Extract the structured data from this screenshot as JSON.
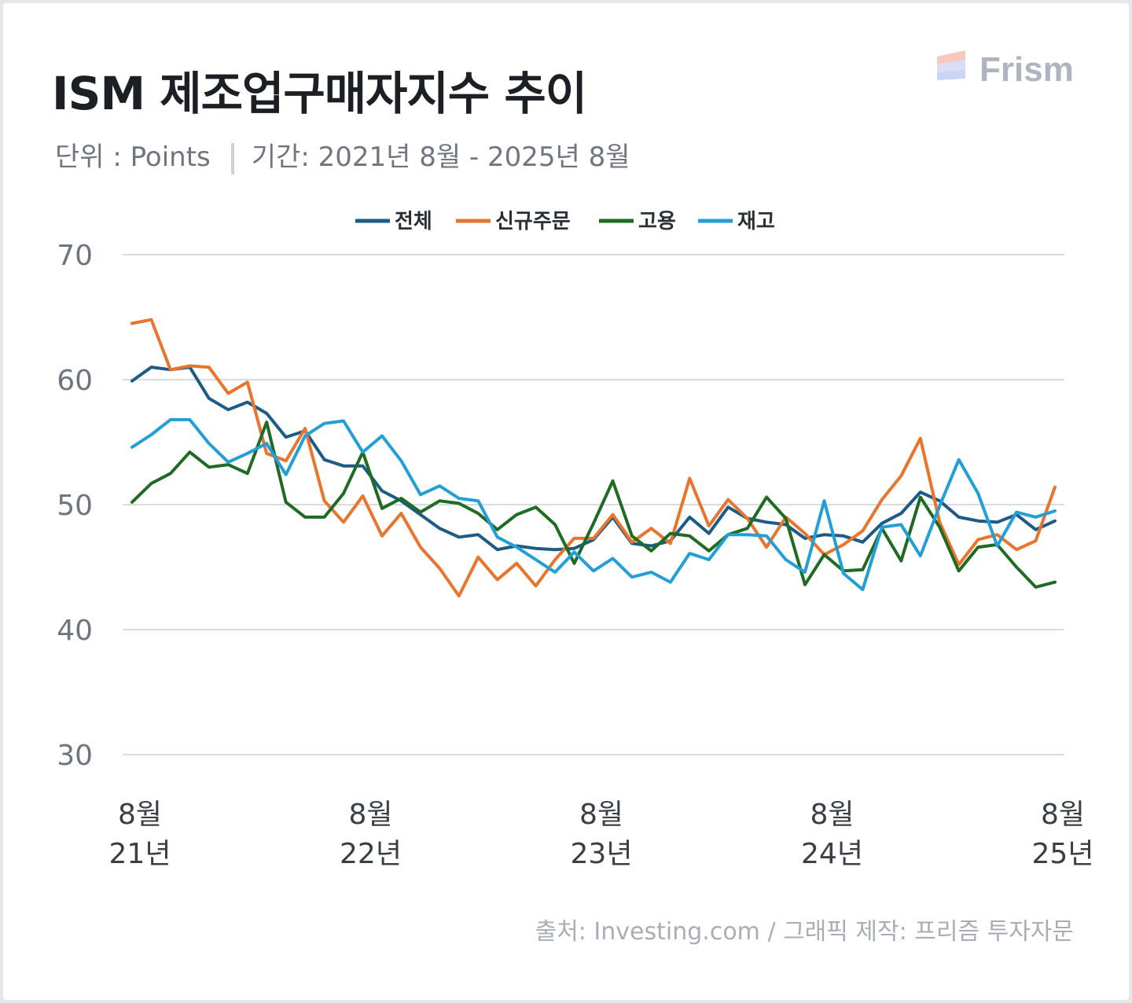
{
  "header": {
    "title": "ISM 제조업구매자지수 추이",
    "unit": "단위 : Points",
    "period": "기간: 2021년 8월 - 2025년 8월",
    "brand": "Frism"
  },
  "footer": {
    "source": "출처: Investing.com / 그래픽 제작: 프리즘 투자자문"
  },
  "colors": {
    "전체": "#1c5b87",
    "신규주문": "#e9742c",
    "고용": "#1f6b23",
    "재고": "#239fd8",
    "grid": "#d9dce1"
  },
  "chart_data": {
    "type": "line",
    "ylim": [
      30,
      70
    ],
    "yticks": [
      70,
      60,
      50,
      40,
      30
    ],
    "xlabel": "",
    "ylabel": "",
    "grid": true,
    "legend_position": "top-center",
    "xtick_labels": [
      {
        "index": 0,
        "month": "8월",
        "year": "21년"
      },
      {
        "index": 12,
        "month": "8월",
        "year": "22년"
      },
      {
        "index": 24,
        "month": "8월",
        "year": "23년"
      },
      {
        "index": 36,
        "month": "8월",
        "year": "24년"
      },
      {
        "index": 48,
        "month": "8월",
        "year": "25년"
      }
    ],
    "x": [
      "2021-08",
      "2021-09",
      "2021-10",
      "2021-11",
      "2021-12",
      "2022-01",
      "2022-02",
      "2022-03",
      "2022-04",
      "2022-05",
      "2022-06",
      "2022-07",
      "2022-08",
      "2022-09",
      "2022-10",
      "2022-11",
      "2022-12",
      "2023-01",
      "2023-02",
      "2023-03",
      "2023-04",
      "2023-05",
      "2023-06",
      "2023-07",
      "2023-08",
      "2023-09",
      "2023-10",
      "2023-11",
      "2023-12",
      "2024-01",
      "2024-02",
      "2024-03",
      "2024-04",
      "2024-05",
      "2024-06",
      "2024-07",
      "2024-08",
      "2024-09",
      "2024-10",
      "2024-11",
      "2024-12",
      "2025-01",
      "2025-02",
      "2025-03",
      "2025-04",
      "2025-05",
      "2025-06",
      "2025-07",
      "2025-08"
    ],
    "series": [
      {
        "name": "전체",
        "values": [
          59.9,
          61.0,
          60.8,
          61.0,
          58.5,
          57.6,
          58.2,
          57.3,
          55.4,
          55.9,
          53.6,
          53.1,
          53.1,
          51.1,
          50.3,
          49.2,
          48.1,
          47.4,
          47.6,
          46.4,
          46.7,
          46.5,
          46.4,
          46.5,
          47.2,
          49.0,
          46.9,
          46.7,
          47.1,
          49.0,
          47.7,
          49.8,
          48.9,
          48.6,
          48.4,
          47.3,
          47.6,
          47.5,
          47.0,
          48.5,
          49.3,
          51.0,
          50.3,
          49.0,
          48.7,
          48.6,
          49.2,
          48.0,
          48.7
        ]
      },
      {
        "name": "신규주문",
        "values": [
          64.5,
          64.8,
          60.8,
          61.1,
          61.0,
          58.9,
          59.8,
          54.1,
          53.5,
          56.1,
          50.3,
          48.6,
          50.7,
          47.5,
          49.3,
          46.6,
          44.9,
          42.7,
          45.8,
          44.0,
          45.3,
          43.5,
          45.6,
          47.3,
          47.3,
          49.2,
          47.0,
          48.1,
          46.9,
          52.1,
          48.3,
          50.4,
          48.9,
          46.6,
          49.0,
          47.7,
          46.0,
          46.8,
          47.9,
          50.4,
          52.3,
          55.3,
          48.6,
          45.2,
          47.2,
          47.6,
          46.4,
          47.1,
          51.4
        ]
      },
      {
        "name": "고용",
        "values": [
          50.2,
          51.7,
          52.5,
          54.2,
          53.0,
          53.2,
          52.5,
          56.6,
          50.2,
          49.0,
          49.0,
          50.9,
          54.2,
          49.7,
          50.5,
          49.4,
          50.3,
          50.1,
          49.3,
          48.0,
          49.2,
          49.8,
          48.4,
          45.3,
          48.5,
          51.9,
          47.5,
          46.3,
          47.7,
          47.5,
          46.3,
          47.6,
          48.1,
          50.6,
          48.9,
          43.6,
          46.0,
          44.7,
          44.8,
          48.1,
          45.5,
          50.6,
          48.2,
          44.7,
          46.6,
          46.8,
          45.0,
          43.4,
          43.8
        ]
      },
      {
        "name": "재고",
        "values": [
          54.6,
          55.6,
          56.8,
          56.8,
          54.9,
          53.4,
          54.1,
          54.9,
          52.4,
          55.5,
          56.5,
          56.7,
          54.2,
          55.5,
          53.5,
          50.8,
          51.5,
          50.5,
          50.3,
          47.4,
          46.6,
          45.6,
          44.6,
          46.2,
          44.7,
          45.7,
          44.2,
          44.6,
          43.8,
          46.1,
          45.6,
          47.6,
          47.6,
          47.5,
          45.6,
          44.6,
          50.3,
          44.5,
          43.2,
          48.2,
          48.4,
          45.9,
          49.9,
          53.6,
          50.9,
          46.7,
          49.4,
          49.0,
          49.5
        ]
      }
    ]
  }
}
